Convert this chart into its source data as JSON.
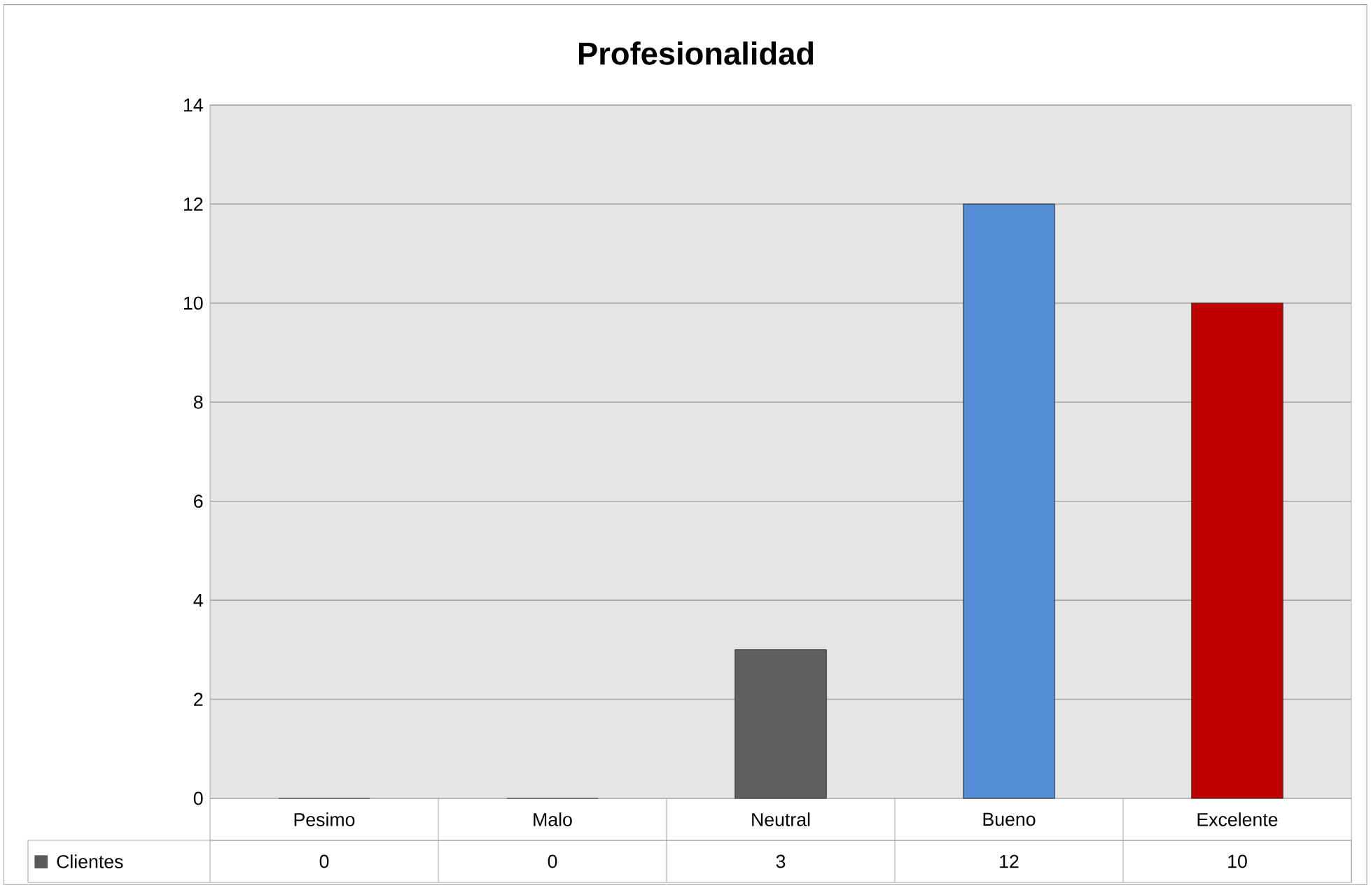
{
  "chart_data": {
    "type": "bar",
    "title": "Profesionalidad",
    "categories": [
      "Pesimo",
      "Malo",
      "Neutral",
      "Bueno",
      "Excelente"
    ],
    "series": [
      {
        "name": "Clientes",
        "color": "#595959",
        "colors": [
          "#606060",
          "#606060",
          "#606060",
          "#558ed5",
          "#c00000"
        ],
        "values": [
          0,
          0,
          3,
          12,
          10
        ]
      }
    ],
    "ylim": [
      0,
      14
    ],
    "yticks": [
      0,
      2,
      4,
      6,
      8,
      10,
      12,
      14
    ],
    "grid": "y",
    "legend": "bottom",
    "data_labels": true
  }
}
